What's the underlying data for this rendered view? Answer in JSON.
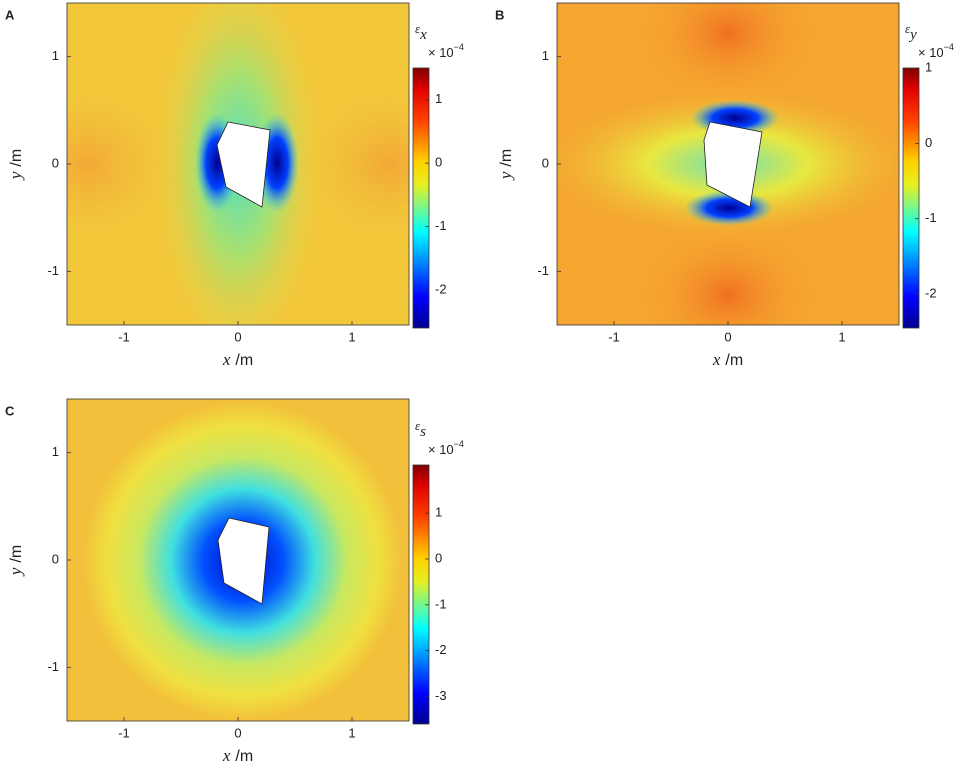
{
  "chart_data": [
    {
      "type": "heatmap",
      "panel_label": "A",
      "xlabel": {
        "var": "x",
        "unit": "/m"
      },
      "ylabel": {
        "var": "y",
        "unit": "/m"
      },
      "xlim": [
        -1.5,
        1.5
      ],
      "ylim": [
        -1.5,
        1.5
      ],
      "xticks": [
        -1,
        0,
        1
      ],
      "yticks": [
        -1,
        0,
        1
      ],
      "colorbar": {
        "symbol": "ε",
        "subscript": "x",
        "multiplier": "× 10",
        "exponent": "−4",
        "clim": [
          -2.6,
          1.5
        ],
        "ticks": [
          -2,
          -1,
          0,
          1
        ]
      }
    },
    {
      "type": "heatmap",
      "panel_label": "B",
      "xlabel": {
        "var": "x",
        "unit": "/m"
      },
      "ylabel": {
        "var": "y",
        "unit": "/m"
      },
      "xlim": [
        -1.5,
        1.5
      ],
      "ylim": [
        -1.5,
        1.5
      ],
      "xticks": [
        -1,
        0,
        1
      ],
      "yticks": [
        -1,
        0,
        1
      ],
      "colorbar": {
        "symbol": "ε",
        "subscript": "y",
        "multiplier": "× 10",
        "exponent": "−4",
        "clim": [
          -2.45,
          1
        ],
        "ticks": [
          -2,
          -1,
          0,
          1
        ]
      }
    },
    {
      "type": "heatmap",
      "panel_label": "C",
      "xlabel": {
        "var": "x",
        "unit": "/m"
      },
      "ylabel": {
        "var": "y",
        "unit": "/m"
      },
      "xlim": [
        -1.5,
        1.5
      ],
      "ylim": [
        -1.5,
        1.5
      ],
      "xticks": [
        -1,
        0,
        1
      ],
      "yticks": [
        -1,
        0,
        1
      ],
      "colorbar": {
        "symbol": "ε",
        "subscript": "s",
        "multiplier": "× 10",
        "exponent": "−4",
        "clim": [
          -3.6,
          2.05
        ],
        "ticks": [
          -3,
          -2,
          -1,
          0,
          1
        ]
      }
    }
  ]
}
